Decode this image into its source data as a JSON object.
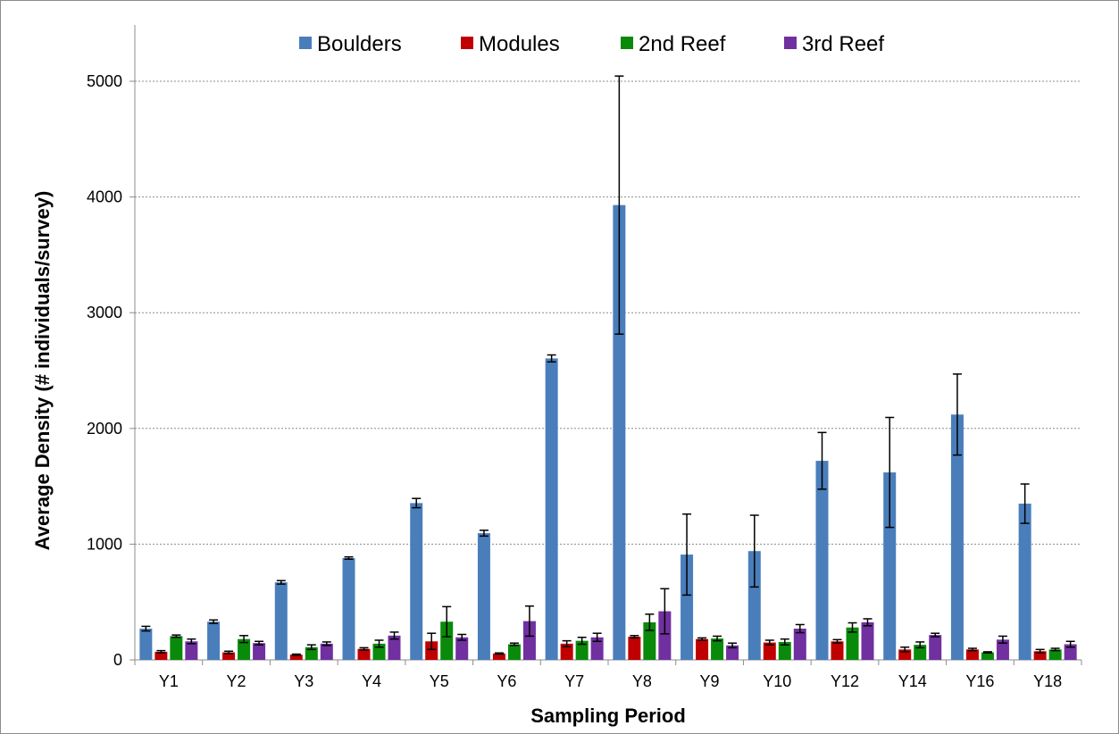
{
  "chart_data": {
    "type": "bar",
    "title": "",
    "xlabel": "Sampling Period",
    "ylabel": "Average Density (# individuals/survey)",
    "ylim": [
      0,
      5000
    ],
    "yticks": [
      0,
      1000,
      2000,
      3000,
      4000,
      5000
    ],
    "grid": true,
    "legend_position": "top",
    "categories": [
      "Y1",
      "Y2",
      "Y3",
      "Y4",
      "Y5",
      "Y6",
      "Y7",
      "Y8",
      "Y9",
      "Y10",
      "Y12",
      "Y14",
      "Y16",
      "Y18"
    ],
    "series": [
      {
        "name": "Boulders",
        "color": "#4a7ebb",
        "values": [
          270,
          330,
          670,
          880,
          1355,
          1095,
          2605,
          3930,
          910,
          940,
          1720,
          1620,
          2120,
          1350
        ],
        "errors": [
          20,
          15,
          15,
          10,
          40,
          25,
          30,
          1115,
          350,
          310,
          245,
          475,
          350,
          170
        ]
      },
      {
        "name": "Modules",
        "color": "#c00000",
        "values": [
          70,
          65,
          45,
          95,
          160,
          55,
          140,
          200,
          180,
          150,
          160,
          90,
          90,
          75
        ],
        "errors": [
          10,
          10,
          5,
          10,
          70,
          5,
          25,
          10,
          10,
          20,
          15,
          20,
          10,
          15
        ]
      },
      {
        "name": "2nd Reef",
        "color": "#0a8a0a",
        "values": [
          205,
          180,
          110,
          140,
          330,
          135,
          165,
          325,
          185,
          155,
          280,
          130,
          65,
          90
        ],
        "errors": [
          10,
          30,
          20,
          30,
          130,
          10,
          30,
          70,
          20,
          25,
          40,
          25,
          5,
          10
        ]
      },
      {
        "name": "3rd Reef",
        "color": "#7030a0",
        "values": [
          160,
          145,
          140,
          210,
          195,
          335,
          195,
          420,
          125,
          270,
          325,
          215,
          175,
          135
        ],
        "errors": [
          20,
          15,
          15,
          30,
          25,
          130,
          35,
          195,
          20,
          35,
          30,
          15,
          30,
          25
        ]
      }
    ]
  }
}
